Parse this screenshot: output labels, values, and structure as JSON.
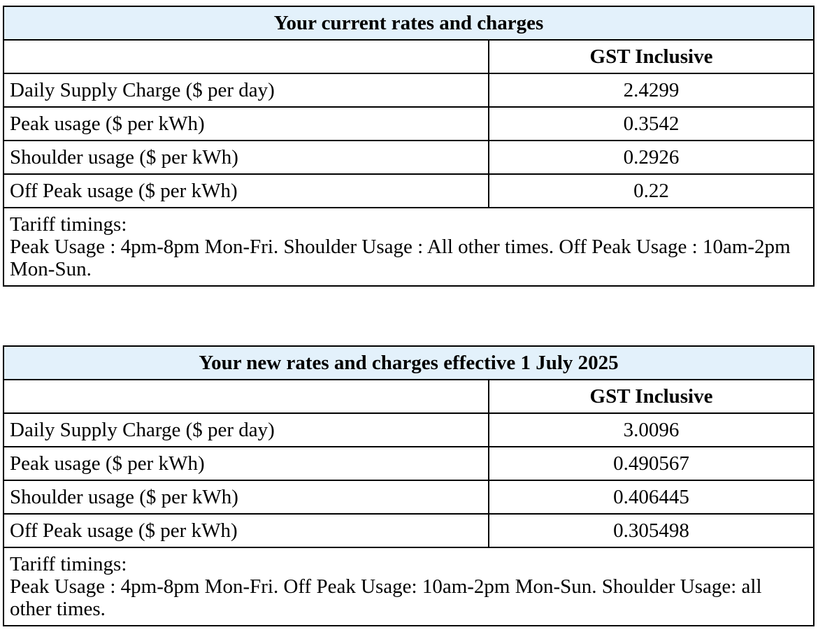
{
  "tables": [
    {
      "title": "Your current rates and charges",
      "column_header": "GST Inclusive",
      "rows": [
        {
          "label": "Daily Supply Charge ($ per day)",
          "value": "2.4299"
        },
        {
          "label": "Peak usage ($ per kWh)",
          "value": "0.3542"
        },
        {
          "label": "Shoulder usage ($ per kWh)",
          "value": "0.2926"
        },
        {
          "label": "Off Peak usage ($ per kWh)",
          "value": "0.22"
        }
      ],
      "notes_heading": "Tariff timings:",
      "notes_text": "Peak Usage : 4pm-8pm Mon-Fri. Shoulder Usage : All other times. Off Peak Usage : 10am-2pm Mon-Sun."
    },
    {
      "title": "Your new rates and charges effective 1 July 2025",
      "column_header": "GST Inclusive",
      "rows": [
        {
          "label": "Daily Supply Charge ($ per day)",
          "value": "3.0096"
        },
        {
          "label": "Peak usage ($ per kWh)",
          "value": "0.490567"
        },
        {
          "label": "Shoulder usage ($ per kWh)",
          "value": "0.406445"
        },
        {
          "label": "Off Peak usage ($ per kWh)",
          "value": "0.305498"
        }
      ],
      "notes_heading": "Tariff timings:",
      "notes_text": "Peak Usage : 4pm-8pm Mon-Fri. Off Peak Usage: 10am-2pm Mon-Sun. Shoulder Usage: all other times."
    }
  ],
  "colors": {
    "header_background": "#e3f1fb",
    "border": "#000000",
    "text": "#000000"
  }
}
